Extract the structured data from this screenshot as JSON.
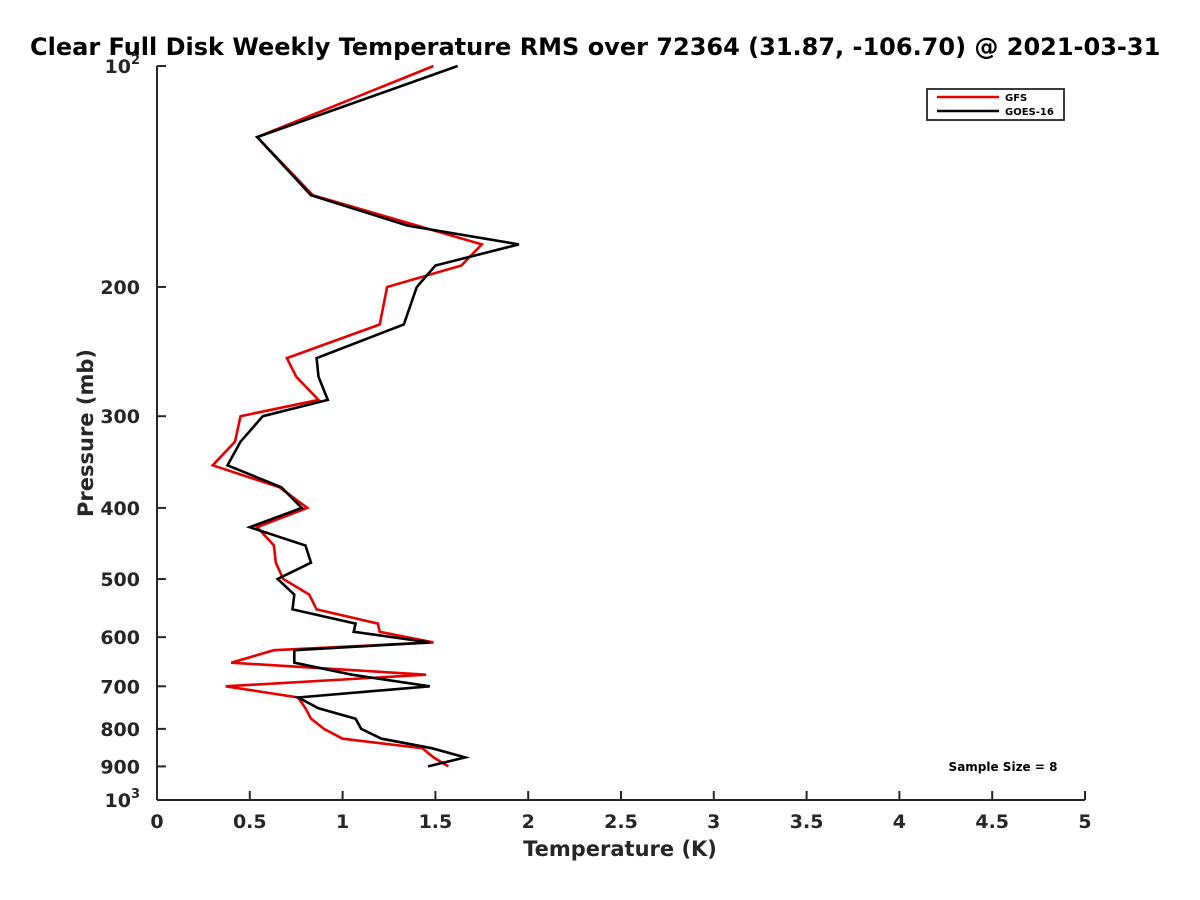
{
  "chart_data": {
    "type": "line",
    "title": "Clear Full Disk Weekly Temperature RMS over 72364 (31.87, -106.70) @ 2021-03-31",
    "xlabel": "Temperature (K)",
    "ylabel": "Pressure (mb)",
    "xlim": [
      0,
      5
    ],
    "ylim": [
      100,
      1000
    ],
    "yscale": "log",
    "y_reversed": true,
    "grid": false,
    "legend_position": "top-right",
    "x_ticks": [
      0,
      0.5,
      1,
      1.5,
      2,
      2.5,
      3,
      3.5,
      4,
      4.5,
      5
    ],
    "x_tick_labels": [
      "0",
      "0.5",
      "1",
      "1.5",
      "2",
      "2.5",
      "3",
      "3.5",
      "4",
      "4.5",
      "5"
    ],
    "y_ticks": [
      100,
      200,
      300,
      400,
      500,
      600,
      700,
      800,
      900,
      1000
    ],
    "y_tick_labels": [
      {
        "base": "10",
        "exp": "2"
      },
      {
        "base": "200",
        "exp": ""
      },
      {
        "base": "300",
        "exp": ""
      },
      {
        "base": "400",
        "exp": ""
      },
      {
        "base": "500",
        "exp": ""
      },
      {
        "base": "600",
        "exp": ""
      },
      {
        "base": "700",
        "exp": ""
      },
      {
        "base": "800",
        "exp": ""
      },
      {
        "base": "900",
        "exp": ""
      },
      {
        "base": "10",
        "exp": "3"
      }
    ],
    "series": [
      {
        "name": "GFS",
        "color": "#e60000",
        "points": [
          [
            1.49,
            100
          ],
          [
            0.54,
            125
          ],
          [
            0.84,
            150
          ],
          [
            1.75,
            175
          ],
          [
            1.64,
            187
          ],
          [
            1.24,
            200
          ],
          [
            1.2,
            225
          ],
          [
            0.7,
            250
          ],
          [
            0.75,
            265
          ],
          [
            0.87,
            285
          ],
          [
            0.45,
            300
          ],
          [
            0.42,
            325
          ],
          [
            0.3,
            350
          ],
          [
            0.66,
            375
          ],
          [
            0.81,
            400
          ],
          [
            0.54,
            425
          ],
          [
            0.63,
            450
          ],
          [
            0.64,
            475
          ],
          [
            0.68,
            500
          ],
          [
            0.82,
            525
          ],
          [
            0.86,
            550
          ],
          [
            1.19,
            575
          ],
          [
            1.2,
            590
          ],
          [
            1.49,
            610
          ],
          [
            0.63,
            625
          ],
          [
            0.4,
            650
          ],
          [
            1.45,
            675
          ],
          [
            0.37,
            700
          ],
          [
            0.76,
            725
          ],
          [
            0.8,
            750
          ],
          [
            0.83,
            775
          ],
          [
            0.9,
            800
          ],
          [
            1.0,
            825
          ],
          [
            1.43,
            850
          ],
          [
            1.49,
            875
          ],
          [
            1.57,
            900
          ]
        ]
      },
      {
        "name": "GOES-16",
        "color": "#000000",
        "points": [
          [
            1.62,
            100
          ],
          [
            0.54,
            125
          ],
          [
            0.83,
            150
          ],
          [
            1.35,
            165
          ],
          [
            1.95,
            175
          ],
          [
            1.5,
            187
          ],
          [
            1.4,
            200
          ],
          [
            1.33,
            225
          ],
          [
            0.86,
            250
          ],
          [
            0.87,
            265
          ],
          [
            0.92,
            285
          ],
          [
            0.57,
            300
          ],
          [
            0.45,
            325
          ],
          [
            0.38,
            350
          ],
          [
            0.67,
            375
          ],
          [
            0.78,
            400
          ],
          [
            0.5,
            425
          ],
          [
            0.8,
            450
          ],
          [
            0.83,
            475
          ],
          [
            0.65,
            500
          ],
          [
            0.74,
            525
          ],
          [
            0.73,
            550
          ],
          [
            1.07,
            575
          ],
          [
            1.06,
            590
          ],
          [
            1.47,
            610
          ],
          [
            0.74,
            625
          ],
          [
            0.74,
            650
          ],
          [
            1.05,
            675
          ],
          [
            1.47,
            700
          ],
          [
            0.76,
            725
          ],
          [
            0.87,
            750
          ],
          [
            1.07,
            775
          ],
          [
            1.1,
            800
          ],
          [
            1.21,
            825
          ],
          [
            1.48,
            850
          ],
          [
            1.66,
            875
          ],
          [
            1.46,
            900
          ]
        ]
      }
    ],
    "annotations": [
      {
        "text": "Sample Size = 8",
        "position": "bottom-right"
      }
    ]
  }
}
